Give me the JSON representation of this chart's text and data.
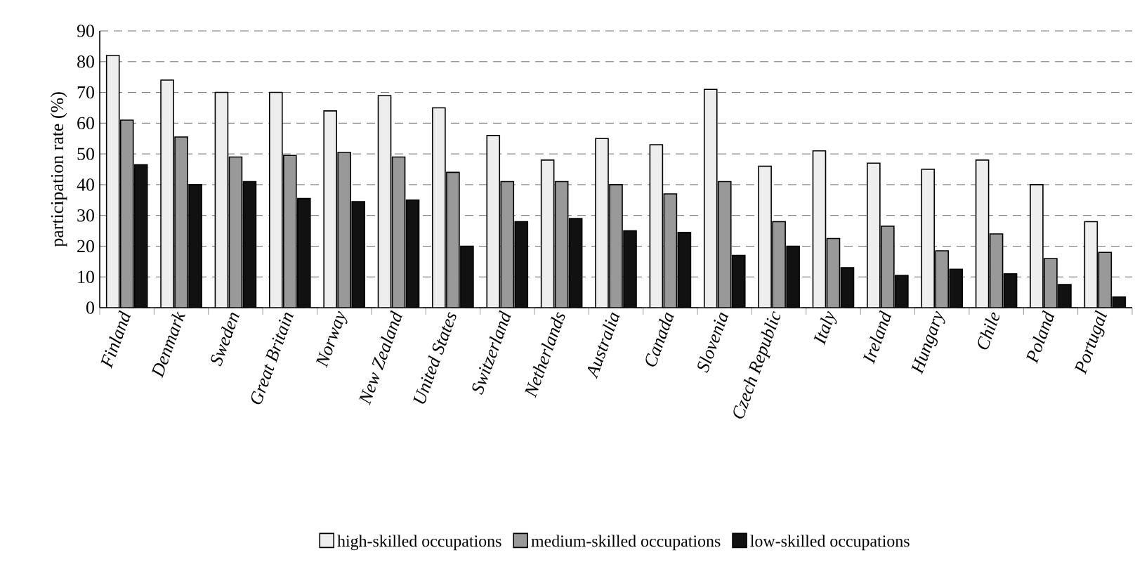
{
  "chart_data": {
    "type": "bar",
    "ylabel": "participation rate (%)",
    "categories": [
      "Finland",
      "Denmark",
      "Sweden",
      "Great Britain",
      "Norway",
      "New Zealand",
      "United States",
      "Switzerland",
      "Netherlands",
      "Australia",
      "Canada",
      "Slovenia",
      "Czech Republic",
      "Italy",
      "Ireland",
      "Hungary",
      "Chile",
      "Poland",
      "Portugal"
    ],
    "series": [
      {
        "name": "high-skilled occupations",
        "color": "#eeeeee",
        "values": [
          82,
          74,
          70,
          70,
          64,
          69,
          65,
          56,
          48,
          55,
          53,
          71,
          46,
          51,
          47,
          45,
          48,
          40,
          28
        ]
      },
      {
        "name": "medium-skilled occupations",
        "color": "#999999",
        "values": [
          61,
          55.5,
          49,
          49.5,
          50.5,
          49,
          44,
          41,
          41,
          40,
          37,
          41,
          28,
          22.5,
          26.5,
          18.5,
          24,
          16,
          18
        ]
      },
      {
        "name": "low-skilled occupations",
        "color": "#111111",
        "values": [
          46.5,
          40,
          41,
          35.5,
          34.5,
          35,
          20,
          28,
          29,
          25,
          24.5,
          17,
          20,
          13,
          10.5,
          12.5,
          11,
          7.5,
          3.5
        ]
      }
    ],
    "ylim": [
      0,
      90
    ],
    "yticks": [
      0,
      10,
      20,
      30,
      40,
      50,
      60,
      70,
      80,
      90
    ],
    "grid": "y",
    "legend": "bottom"
  }
}
